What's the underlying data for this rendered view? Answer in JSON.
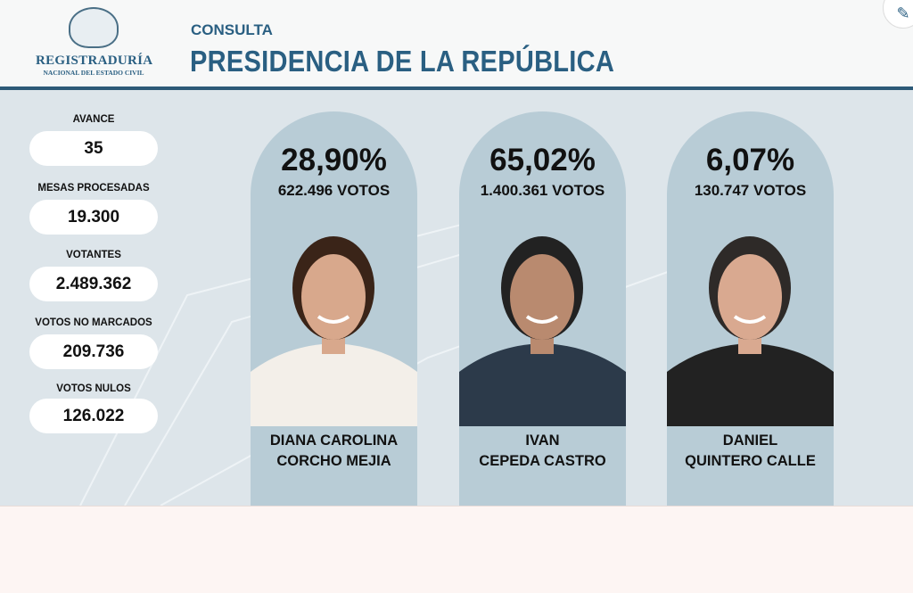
{
  "header": {
    "logo_title": "REGISTRADURÍA",
    "logo_subtitle": "NACIONAL DEL ESTADO CIVIL",
    "subtitle": "CONSULTA",
    "title": "PRESIDENCIA DE LA REPÚBLICA"
  },
  "stats": [
    {
      "label": "AVANCE",
      "value": "35"
    },
    {
      "label": "MESAS PROCESADAS",
      "value": "19.300"
    },
    {
      "label": "VOTANTES",
      "value": "2.489.362"
    },
    {
      "label": "VOTOS NO MARCADOS",
      "value": "209.736"
    },
    {
      "label": "VOTOS NULOS",
      "value": "126.022"
    }
  ],
  "candidates": [
    {
      "percent": "28,90%",
      "votes": "622.496 VOTOS",
      "name1": "DIANA CAROLINA",
      "name2": "CORCHO MEJIA",
      "skin": "#d8a88c",
      "hair": "#3a2418",
      "clothes": "#f3efe9"
    },
    {
      "percent": "65,02%",
      "votes": "1.400.361 VOTOS",
      "name1": "IVAN",
      "name2": "CEPEDA CASTRO",
      "skin": "#b98a6f",
      "hair": "#222",
      "clothes": "#2c3a4a"
    },
    {
      "percent": "6,07%",
      "votes": "130.747 VOTOS",
      "name1": "DANIEL",
      "name2": "QUINTERO CALLE",
      "skin": "#d9a990",
      "hair": "#2e2a28",
      "clothes": "#222"
    }
  ]
}
